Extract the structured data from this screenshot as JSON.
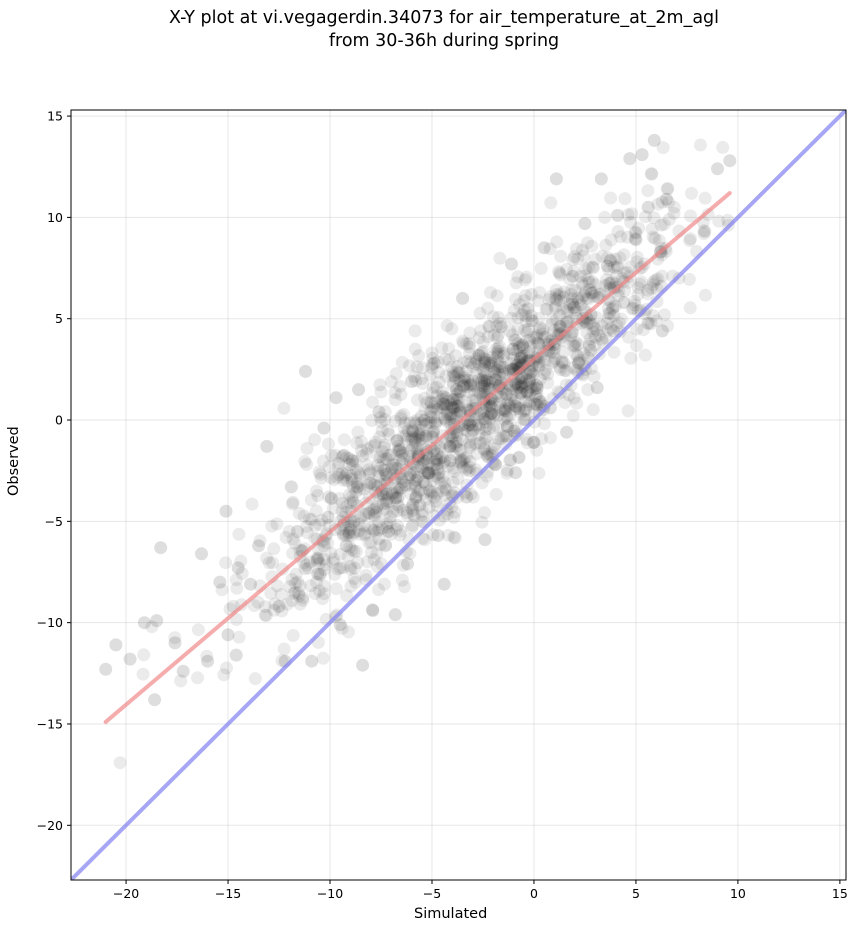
{
  "chart_data": {
    "type": "scatter",
    "title_line1": "X-Y plot at vi.vegagerdin.34073 for air_temperature_at_2m_agl",
    "title_line2": "from 30-36h during spring",
    "xlabel": "Simulated",
    "ylabel": "Observed",
    "xlim": [
      -22.7,
      15.3
    ],
    "ylim": [
      -22.7,
      15.3
    ],
    "xticks": [
      -20,
      -15,
      -10,
      -5,
      0,
      5,
      10,
      15
    ],
    "yticks": [
      -20,
      -15,
      -10,
      -5,
      0,
      5,
      10,
      15
    ],
    "grid": true,
    "points_color": "#000000",
    "points_opacity": 0.08,
    "point_count_approx": 1500,
    "regression_line": {
      "x": [
        -21.0,
        9.6
      ],
      "y": [
        -14.9,
        11.2
      ],
      "color": "#f08080"
    },
    "identity_line": {
      "x": [
        -22.7,
        15.3
      ],
      "y": [
        -22.7,
        15.3
      ],
      "color": "#8080f0"
    },
    "sample_points": [
      [
        -21.0,
        -12.3
      ],
      [
        -20.5,
        -11.1
      ],
      [
        -19.8,
        -11.8
      ],
      [
        -19.1,
        -10.0
      ],
      [
        -18.5,
        -9.9
      ],
      [
        -18.3,
        -6.3
      ],
      [
        -18.6,
        -13.8
      ],
      [
        -17.6,
        -11.0
      ],
      [
        -17.2,
        -12.4
      ],
      [
        -16.3,
        -6.6
      ],
      [
        -16.0,
        -11.9
      ],
      [
        -15.4,
        -8.0
      ],
      [
        -15.1,
        -4.5
      ],
      [
        -15.0,
        -10.6
      ],
      [
        -14.6,
        -11.6
      ],
      [
        -14.5,
        -7.3
      ],
      [
        -13.9,
        -8.1
      ],
      [
        -13.5,
        -6.2
      ],
      [
        -13.1,
        -1.3
      ],
      [
        -12.5,
        -9.2
      ],
      [
        -12.2,
        -11.9
      ],
      [
        -11.9,
        -3.3
      ],
      [
        -11.6,
        -5.5
      ],
      [
        -11.2,
        2.4
      ],
      [
        -10.9,
        -11.9
      ],
      [
        -10.6,
        -7.6
      ],
      [
        -10.3,
        -0.4
      ],
      [
        -10.1,
        -4.8
      ],
      [
        -9.7,
        1.1
      ],
      [
        -9.5,
        -10.1
      ],
      [
        -9.2,
        -6.2
      ],
      [
        -8.9,
        -2.0
      ],
      [
        -8.4,
        -12.1
      ],
      [
        -8.6,
        1.5
      ],
      [
        -8.1,
        -4.6
      ],
      [
        -7.9,
        -9.4
      ],
      [
        -7.6,
        0.4
      ],
      [
        -7.2,
        -3.1
      ],
      [
        -6.8,
        -9.6
      ],
      [
        -6.7,
        -1.0
      ],
      [
        -6.2,
        -7.1
      ],
      [
        -6.0,
        1.9
      ],
      [
        -5.6,
        -4.2
      ],
      [
        -5.3,
        -0.8
      ],
      [
        -4.9,
        2.8
      ],
      [
        -4.7,
        -5.7
      ],
      [
        -4.4,
        -8.1
      ],
      [
        -4.1,
        -2.0
      ],
      [
        -3.8,
        1.5
      ],
      [
        -3.5,
        6.0
      ],
      [
        -3.3,
        -3.8
      ],
      [
        -3.0,
        -0.5
      ],
      [
        -2.7,
        3.2
      ],
      [
        -2.4,
        -5.9
      ],
      [
        -2.2,
        0.9
      ],
      [
        -1.9,
        -2.2
      ],
      [
        -1.6,
        4.6
      ],
      [
        -1.3,
        -0.3
      ],
      [
        -1.1,
        7.7
      ],
      [
        -0.9,
        -2.6
      ],
      [
        -0.6,
        2.1
      ],
      [
        -0.3,
        5.5
      ],
      [
        0.0,
        -1.1
      ],
      [
        0.2,
        3.8
      ],
      [
        0.5,
        8.5
      ],
      [
        0.8,
        0.6
      ],
      [
        1.1,
        11.9
      ],
      [
        1.3,
        4.6
      ],
      [
        1.6,
        -0.6
      ],
      [
        1.9,
        7.1
      ],
      [
        2.2,
        2.8
      ],
      [
        2.5,
        9.7
      ],
      [
        2.8,
        5.2
      ],
      [
        3.1,
        1.6
      ],
      [
        3.3,
        11.9
      ],
      [
        3.6,
        7.6
      ],
      [
        3.9,
        4.4
      ],
      [
        4.1,
        10.1
      ],
      [
        4.4,
        5.8
      ],
      [
        4.7,
        12.9
      ],
      [
        5.0,
        8.9
      ],
      [
        5.3,
        13.1
      ],
      [
        5.6,
        10.5
      ],
      [
        5.9,
        13.8
      ],
      [
        6.2,
        8.3
      ],
      [
        6.3,
        4.4
      ],
      [
        6.5,
        10.9
      ],
      [
        9.0,
        12.4
      ],
      [
        9.6,
        12.8
      ]
    ]
  }
}
